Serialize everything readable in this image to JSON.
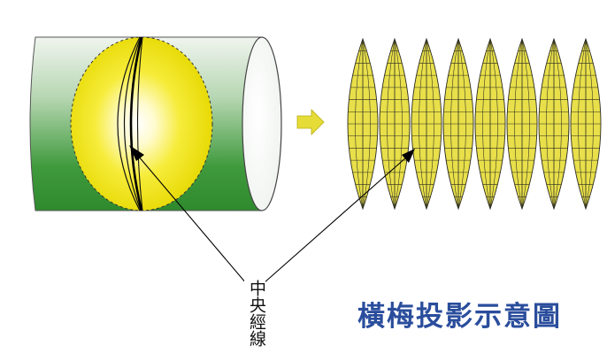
{
  "labels": {
    "central_meridian": "中央經線",
    "title": "橫梅投影示意圖"
  },
  "colors": {
    "cylinder_green": "#3f9a3c",
    "cylinder_light": "#eef4ec",
    "globe_yellow": "#f2e200",
    "globe_highlight": "#ffffff",
    "gore_fill": "#e8df4a",
    "gore_line": "#2b2b20",
    "arrow_fill": "#e6dc38",
    "title_blue": "#2a4d9c"
  },
  "diagram": {
    "gore_count": 8,
    "gore_grid_rows": 14
  }
}
